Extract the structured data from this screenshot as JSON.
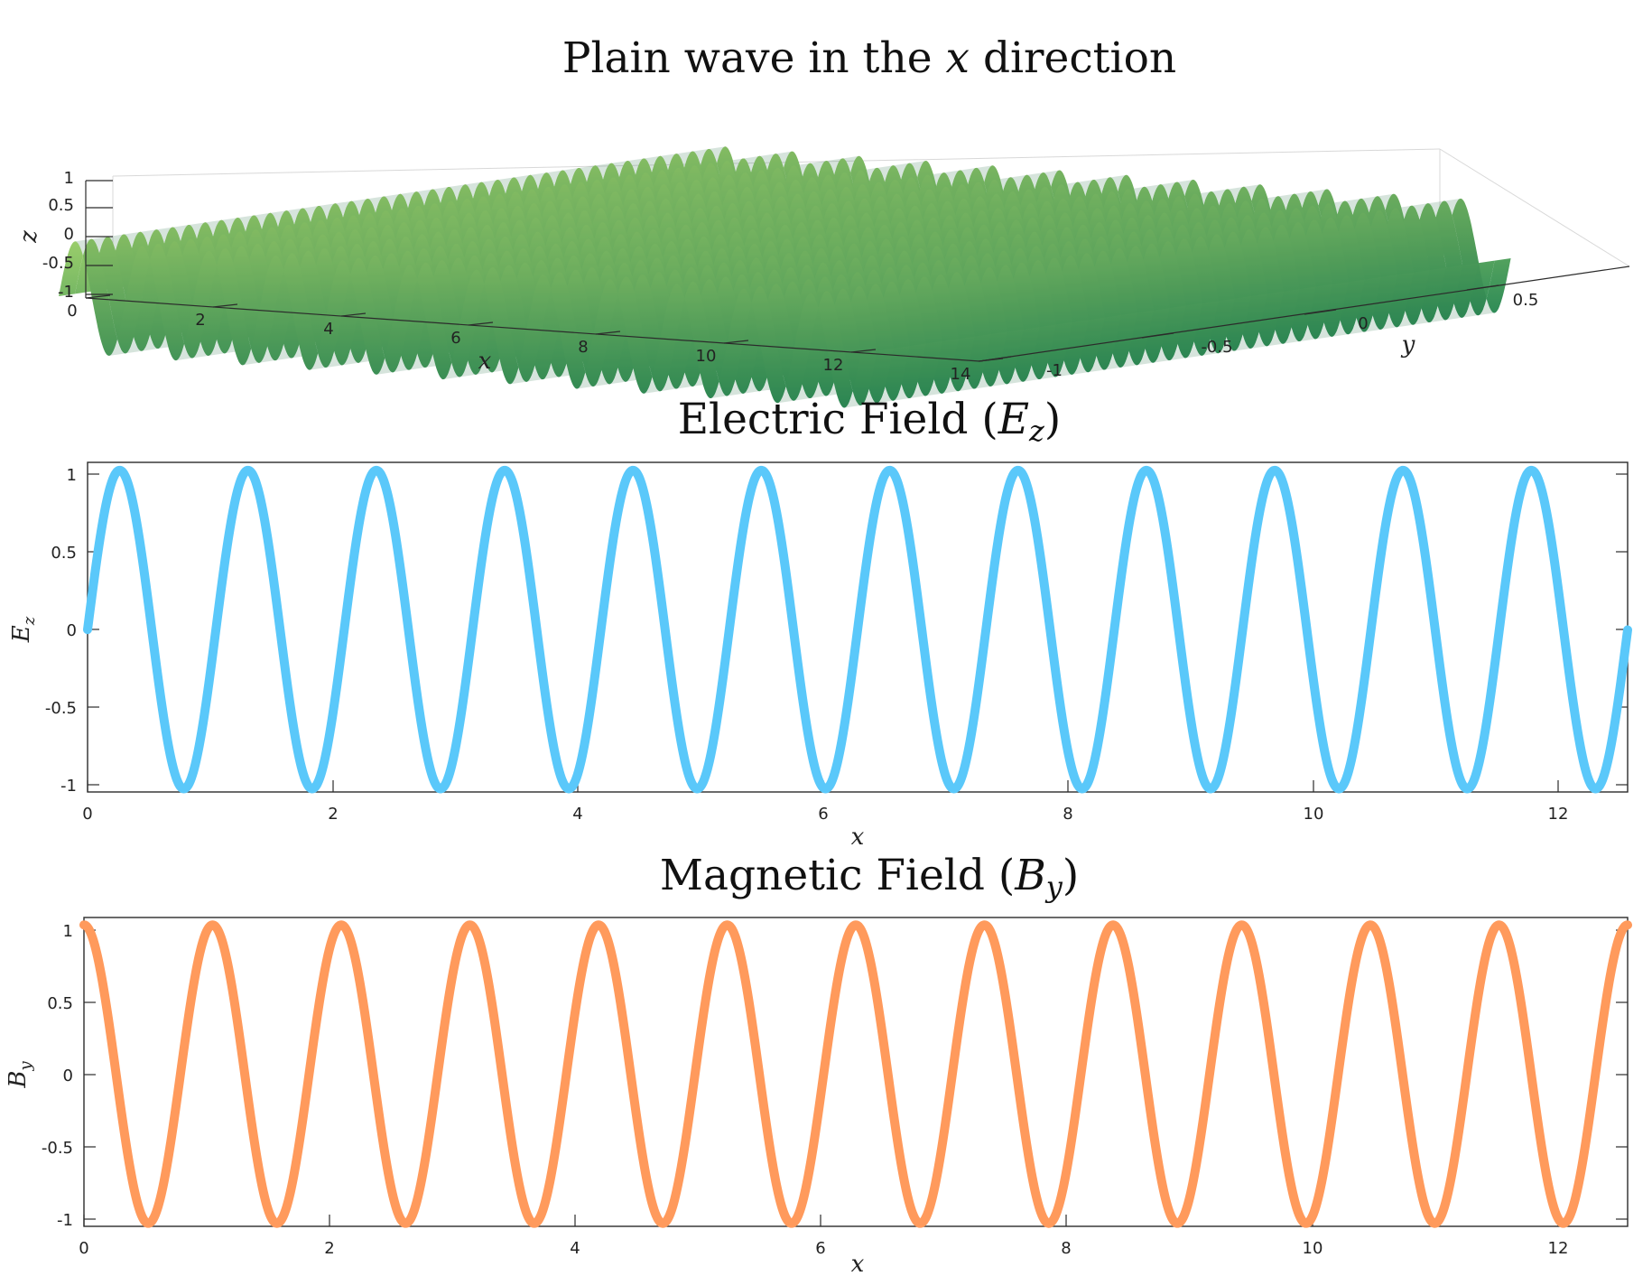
{
  "chart_data": [
    {
      "type": "surface",
      "title_parts": [
        "Plain wave in the ",
        "x",
        " direction"
      ],
      "xlabel": "x",
      "ylabel": "y",
      "zlabel": "z",
      "x_ticks": [
        "0",
        "2",
        "4",
        "6",
        "8",
        "10",
        "12",
        "14"
      ],
      "y_ticks": [
        "-1",
        "-0.5",
        "0",
        "0.5"
      ],
      "z_ticks": [
        "1",
        "0.5",
        "0",
        "-0.5",
        "-1"
      ],
      "xlim": [
        0,
        12.566
      ],
      "ylim": [
        -1,
        1
      ],
      "zlim": [
        -1,
        1
      ],
      "function": "z = sin(6x)",
      "colors": {
        "top": "#94c864",
        "bottom": "#2e8b57"
      }
    },
    {
      "type": "line",
      "title_parts": [
        "Electric Field (",
        "E",
        "z",
        ")"
      ],
      "xlabel": "x",
      "ylabel_parts": [
        "E",
        "z"
      ],
      "x_ticks": [
        "0",
        "2",
        "4",
        "6",
        "8",
        "10",
        "12"
      ],
      "y_ticks": [
        "1",
        "0.5",
        "0",
        "-0.5",
        "-1"
      ],
      "xlim": [
        0,
        12.566
      ],
      "ylim": [
        -1.02,
        1.05
      ],
      "series": [
        {
          "function": "sin(6x)",
          "angular_frequency": 6,
          "phase": 0,
          "x_start": 0,
          "x_end": 12.566,
          "color": "#5ac8fa"
        }
      ]
    },
    {
      "type": "line",
      "title_parts": [
        "Magnetic Field (",
        "B",
        "y",
        ")"
      ],
      "xlabel": "x",
      "ylabel_parts": [
        "B",
        "y"
      ],
      "x_ticks": [
        "0",
        "2",
        "4",
        "6",
        "8",
        "10",
        "12"
      ],
      "y_ticks": [
        "1",
        "0.5",
        "0",
        "-0.5",
        "-1"
      ],
      "xlim": [
        0,
        12.566
      ],
      "ylim": [
        -1.02,
        1.05
      ],
      "series": [
        {
          "function": "cos(6x)",
          "angular_frequency": 6,
          "phase": 1.5708,
          "x_start": 0,
          "x_end": 12.566,
          "color": "#ff9a5c"
        }
      ]
    }
  ]
}
